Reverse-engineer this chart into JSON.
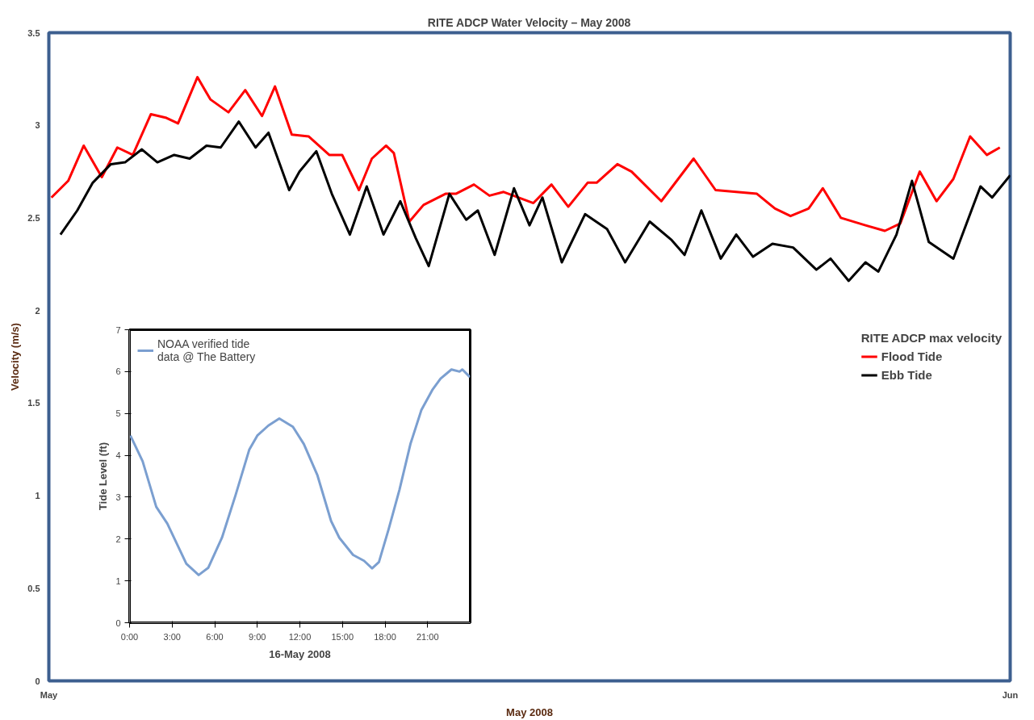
{
  "chart_data": [
    {
      "type": "line",
      "title": "RITE ADCP Water Velocity – May 2008",
      "xlabel": "May 2008",
      "ylabel": "Velocity (m/s)",
      "legend_title": "RITE ADCP max velocity",
      "legend": "right",
      "grid": false,
      "line_style": "solid",
      "marker": "none",
      "xlim": [
        "2008-05-01",
        "2008-06-01"
      ],
      "xticks": [
        {
          "value": "2008-05-01",
          "label": "May"
        },
        {
          "value": "2008-06-01",
          "label": "Jun"
        }
      ],
      "ylim": [
        0,
        3.5
      ],
      "yticks": [
        0,
        0.5,
        1,
        1.5,
        2,
        2.5,
        3,
        3.5
      ],
      "series": [
        {
          "name": "Flood Tide",
          "color": "#ff0000",
          "x": [
            "2008-05-01T02:00",
            "2008-05-01T15:00",
            "2008-05-02T03:00",
            "2008-05-02T17:00",
            "2008-05-03T05:00",
            "2008-05-03T17:00",
            "2008-05-04T07:00",
            "2008-05-04T19:00",
            "2008-05-05T04:00",
            "2008-05-05T19:00",
            "2008-05-06T05:00",
            "2008-05-06T19:00",
            "2008-05-07T08:00",
            "2008-05-07T21:00",
            "2008-05-08T07:00",
            "2008-05-08T20:00",
            "2008-05-09T09:00",
            "2008-05-10T01:00",
            "2008-05-10T11:00",
            "2008-05-11T00:00",
            "2008-05-11T10:00",
            "2008-05-11T21:00",
            "2008-05-12T03:00",
            "2008-05-12T15:00",
            "2008-05-13T02:00",
            "2008-05-13T19:00",
            "2008-05-14T03:00",
            "2008-05-14T17:00",
            "2008-05-15T05:00",
            "2008-05-15T16:00",
            "2008-05-16T15:00",
            "2008-05-17T05:00",
            "2008-05-17T18:00",
            "2008-05-18T09:00",
            "2008-05-18T16:00",
            "2008-05-19T08:00",
            "2008-05-19T19:00",
            "2008-05-20T18:00",
            "2008-05-21T19:00",
            "2008-05-22T12:00",
            "2008-05-23T20:00",
            "2008-05-24T10:00",
            "2008-05-24T22:00",
            "2008-05-25T12:00",
            "2008-05-25T23:00",
            "2008-05-26T13:00",
            "2008-05-27T08:00",
            "2008-05-27T23:00",
            "2008-05-28T11:00",
            "2008-05-29T02:00",
            "2008-05-29T15:00",
            "2008-05-30T04:00",
            "2008-05-30T17:00",
            "2008-05-31T06:00",
            "2008-05-31T16:00"
          ],
          "values": [
            2.61,
            2.7,
            2.89,
            2.72,
            2.88,
            2.84,
            3.06,
            3.04,
            3.01,
            3.26,
            3.14,
            3.07,
            3.19,
            3.05,
            3.21,
            2.95,
            2.94,
            2.84,
            2.84,
            2.65,
            2.82,
            2.89,
            2.85,
            2.48,
            2.57,
            2.63,
            2.63,
            2.68,
            2.62,
            2.64,
            2.58,
            2.68,
            2.56,
            2.69,
            2.69,
            2.79,
            2.75,
            2.59,
            2.82,
            2.65,
            2.63,
            2.55,
            2.51,
            2.55,
            2.66,
            2.5,
            2.46,
            2.43,
            2.47,
            2.75,
            2.59,
            2.71,
            2.94,
            2.84,
            2.88
          ]
        },
        {
          "name": "Ebb Tide",
          "color": "#000000",
          "x": [
            "2008-05-01T09:00",
            "2008-05-01T22:00",
            "2008-05-02T10:00",
            "2008-05-03T00:00",
            "2008-05-03T11:00",
            "2008-05-04T00:00",
            "2008-05-04T12:00",
            "2008-05-05T01:00",
            "2008-05-05T13:00",
            "2008-05-06T02:00",
            "2008-05-06T13:00",
            "2008-05-07T03:00",
            "2008-05-07T16:00",
            "2008-05-08T02:00",
            "2008-05-08T18:00",
            "2008-05-09T02:00",
            "2008-05-09T15:00",
            "2008-05-10T03:00",
            "2008-05-10T17:00",
            "2008-05-11T06:00",
            "2008-05-11T19:00",
            "2008-05-12T08:00",
            "2008-05-12T20:00",
            "2008-05-13T06:00",
            "2008-05-13T22:00",
            "2008-05-14T11:00",
            "2008-05-14T20:00",
            "2008-05-15T09:00",
            "2008-05-16T00:00",
            "2008-05-16T12:00",
            "2008-05-16T22:00",
            "2008-05-17T13:00",
            "2008-05-18T07:00",
            "2008-05-19T00:00",
            "2008-05-19T14:00",
            "2008-05-20T09:00",
            "2008-05-21T02:00",
            "2008-05-21T12:00",
            "2008-05-22T01:00",
            "2008-05-22T16:00",
            "2008-05-23T04:00",
            "2008-05-23T17:00",
            "2008-05-24T08:00",
            "2008-05-25T00:00",
            "2008-05-25T18:00",
            "2008-05-26T05:00",
            "2008-05-26T19:00",
            "2008-05-27T08:00",
            "2008-05-27T18:00",
            "2008-05-28T08:00",
            "2008-05-28T20:00",
            "2008-05-29T09:00",
            "2008-05-30T04:00",
            "2008-05-31T01:00",
            "2008-05-31T10:00",
            "2008-06-01T00:00"
          ],
          "values": [
            2.41,
            2.54,
            2.69,
            2.79,
            2.8,
            2.87,
            2.8,
            2.84,
            2.82,
            2.89,
            2.88,
            3.02,
            2.88,
            2.96,
            2.65,
            2.75,
            2.86,
            2.63,
            2.41,
            2.67,
            2.41,
            2.59,
            2.39,
            2.24,
            2.63,
            2.49,
            2.54,
            2.3,
            2.66,
            2.46,
            2.61,
            2.26,
            2.52,
            2.44,
            2.26,
            2.48,
            2.38,
            2.3,
            2.54,
            2.28,
            2.41,
            2.29,
            2.36,
            2.34,
            2.22,
            2.28,
            2.16,
            2.26,
            2.21,
            2.41,
            2.7,
            2.37,
            2.28,
            2.67,
            2.61,
            2.73
          ]
        }
      ]
    },
    {
      "type": "line",
      "xlabel": "16-May 2008",
      "ylabel": "Tide Level (ft)",
      "legend": "top left",
      "grid": false,
      "line_style": "solid",
      "marker": "none",
      "xlim": [
        0,
        24
      ],
      "xticks": [
        {
          "value": 0,
          "label": "0:00"
        },
        {
          "value": 3,
          "label": "3:00"
        },
        {
          "value": 6,
          "label": "6:00"
        },
        {
          "value": 9,
          "label": "9:00"
        },
        {
          "value": 12,
          "label": "12:00"
        },
        {
          "value": 15,
          "label": "15:00"
        },
        {
          "value": 18,
          "label": "18:00"
        },
        {
          "value": 21,
          "label": "21:00"
        }
      ],
      "ylim": [
        0,
        7
      ],
      "yticks": [
        0,
        1,
        2,
        3,
        4,
        5,
        6,
        7
      ],
      "series": [
        {
          "name": "NOAA verified tide data @ The Battery",
          "color": "#7b9fd0",
          "x": [
            0.06,
            0.92,
            1.88,
            2.66,
            4.0,
            4.87,
            5.54,
            6.51,
            7.47,
            8.43,
            9.0,
            9.78,
            10.55,
            11.51,
            12.28,
            13.24,
            14.2,
            14.78,
            15.75,
            16.52,
            17.09,
            17.57,
            18.25,
            19.02,
            19.79,
            20.56,
            21.33,
            21.91,
            22.68,
            23.25,
            23.45,
            23.98
          ],
          "values": [
            4.47,
            3.86,
            2.77,
            2.37,
            1.41,
            1.14,
            1.31,
            2.03,
            3.05,
            4.13,
            4.47,
            4.71,
            4.88,
            4.68,
            4.27,
            3.52,
            2.43,
            2.03,
            1.62,
            1.48,
            1.3,
            1.45,
            2.23,
            3.18,
            4.27,
            5.08,
            5.56,
            5.83,
            6.05,
            6.0,
            6.05,
            5.87
          ]
        }
      ]
    }
  ]
}
